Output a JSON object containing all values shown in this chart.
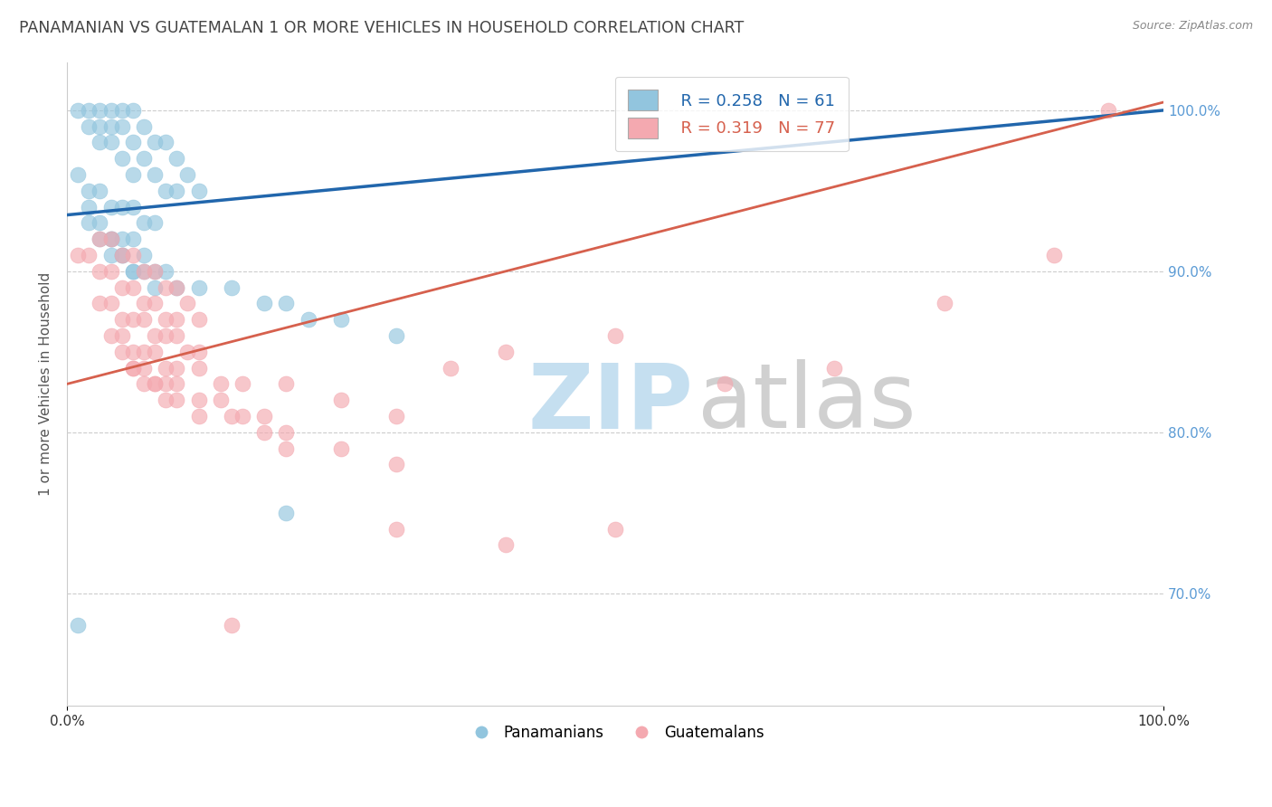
{
  "title": "PANAMANIAN VS GUATEMALAN 1 OR MORE VEHICLES IN HOUSEHOLD CORRELATION CHART",
  "source": "Source: ZipAtlas.com",
  "ylabel": "1 or more Vehicles in Household",
  "legend_r_pan": "R = 0.258",
  "legend_n_pan": "N = 61",
  "legend_r_gua": "R = 0.319",
  "legend_n_gua": "N = 77",
  "legend_label_pan": "Panamanians",
  "legend_label_gua": "Guatemalans",
  "pan_color": "#92c5de",
  "gua_color": "#f4a9b0",
  "pan_line_color": "#2166ac",
  "gua_line_color": "#d6604d",
  "xlim": [
    0,
    100
  ],
  "ylim": [
    63,
    103
  ],
  "yticks": [
    70,
    80,
    90,
    100
  ],
  "ytick_labels_right": [
    "70.0%",
    "80.0%",
    "90.0%",
    "100.0%"
  ],
  "pan_line_start_y": 93.5,
  "pan_line_end_y": 100.0,
  "gua_line_start_y": 83.0,
  "gua_line_end_y": 100.5,
  "pan_scatter_x": [
    1,
    2,
    2,
    3,
    3,
    3,
    4,
    4,
    4,
    5,
    5,
    5,
    6,
    6,
    6,
    7,
    7,
    8,
    8,
    9,
    9,
    10,
    10,
    11,
    12,
    2,
    3,
    4,
    5,
    6,
    7,
    8,
    2,
    3,
    4,
    5,
    6,
    7,
    4,
    5,
    6,
    7,
    8,
    9,
    10,
    12,
    15,
    18,
    20,
    22,
    25,
    30,
    1,
    2,
    3,
    4,
    5,
    6,
    8,
    1,
    20
  ],
  "pan_scatter_y": [
    100,
    100,
    99,
    100,
    99,
    98,
    100,
    99,
    98,
    100,
    99,
    97,
    100,
    98,
    96,
    99,
    97,
    98,
    96,
    98,
    95,
    97,
    95,
    96,
    95,
    95,
    95,
    94,
    94,
    94,
    93,
    93,
    93,
    92,
    92,
    92,
    92,
    91,
    91,
    91,
    90,
    90,
    90,
    90,
    89,
    89,
    89,
    88,
    88,
    87,
    87,
    86,
    96,
    94,
    93,
    92,
    91,
    90,
    89,
    68,
    75
  ],
  "gua_scatter_x": [
    1,
    2,
    3,
    3,
    4,
    4,
    5,
    5,
    6,
    6,
    7,
    7,
    8,
    8,
    9,
    9,
    10,
    10,
    11,
    12,
    3,
    4,
    5,
    6,
    7,
    8,
    9,
    10,
    11,
    12,
    4,
    5,
    6,
    7,
    8,
    9,
    10,
    12,
    14,
    16,
    5,
    6,
    7,
    8,
    9,
    10,
    12,
    14,
    16,
    18,
    20,
    6,
    7,
    8,
    9,
    10,
    12,
    15,
    18,
    20,
    25,
    30,
    20,
    25,
    30,
    35,
    40,
    50,
    30,
    40,
    50,
    60,
    70,
    80,
    90,
    95,
    15
  ],
  "gua_scatter_y": [
    91,
    91,
    92,
    90,
    92,
    90,
    91,
    89,
    91,
    89,
    90,
    88,
    90,
    88,
    89,
    87,
    89,
    87,
    88,
    87,
    88,
    88,
    87,
    87,
    87,
    86,
    86,
    86,
    85,
    85,
    86,
    86,
    85,
    85,
    85,
    84,
    84,
    84,
    83,
    83,
    85,
    84,
    84,
    83,
    83,
    83,
    82,
    82,
    81,
    81,
    80,
    84,
    83,
    83,
    82,
    82,
    81,
    81,
    80,
    79,
    79,
    78,
    83,
    82,
    81,
    84,
    85,
    86,
    74,
    73,
    74,
    83,
    84,
    88,
    91,
    100,
    68
  ]
}
